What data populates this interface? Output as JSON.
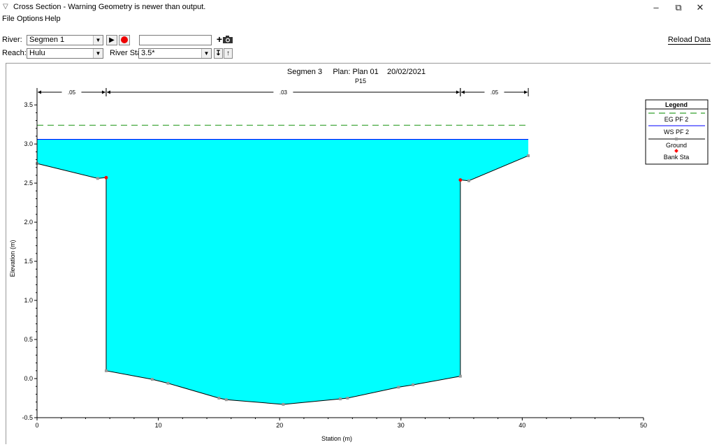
{
  "window": {
    "title": "Cross Section - Warning Geometry is newer than output.",
    "minimize": "–",
    "maximize": "⧉",
    "close": "✕"
  },
  "menu": [
    "File",
    "Options",
    "Help"
  ],
  "toolbar": {
    "river_label": "River:",
    "river_value": "Segmen 1",
    "reach_label": "Reach:",
    "reach_value": "Hulu",
    "river_sta_label": "River Sta.:",
    "river_sta_value": "3.5*",
    "profile_value": "",
    "reload_label": "Reload Data"
  },
  "icons": {
    "play": "play-icon",
    "record": "record-icon",
    "plus": "plus-icon",
    "camera": "camera-icon",
    "down": "down-arrow-icon",
    "up": "up-arrow-icon"
  },
  "colors": {
    "water": "#00FFFF",
    "eg_line": "#33a02c",
    "ws_line": "#0000ff",
    "bank_sta": "#ff0000",
    "ground_point": "#999999"
  },
  "chart_data": {
    "type": "area",
    "title": "Segmen 3     Plan: Plan 01    20/02/2021",
    "subtitle": "P15",
    "xlabel": "Station (m)",
    "ylabel": "Elevation (m)",
    "xlim": [
      0,
      50
    ],
    "ylim": [
      -0.5,
      3.6
    ],
    "x_ticks": [
      0,
      10,
      20,
      30,
      40,
      50
    ],
    "y_ticks": [
      -0.5,
      0.0,
      0.5,
      1.0,
      1.5,
      2.0,
      2.5,
      3.0,
      3.5
    ],
    "x_tick_labels": [
      "0",
      "10",
      "20",
      "30",
      "40",
      "50"
    ],
    "y_tick_labels": [
      "-0.5",
      "0.0",
      "0.5",
      "1.0",
      "1.5",
      "2.0",
      "2.5",
      "3.0",
      "3.5"
    ],
    "ground": {
      "x": [
        0,
        5,
        5.7,
        5.7,
        9.5,
        10.8,
        15,
        15.6,
        20.3,
        25,
        25.6,
        29.8,
        31,
        34.9,
        34.9,
        35.6,
        40.5
      ],
      "y": [
        2.75,
        2.56,
        2.57,
        0.1,
        -0.01,
        -0.06,
        -0.25,
        -0.27,
        -0.33,
        -0.26,
        -0.25,
        -0.11,
        -0.08,
        0.03,
        2.54,
        2.53,
        2.85
      ]
    },
    "bank_stations": [
      {
        "x": 5.7,
        "y": 2.57
      },
      {
        "x": 34.9,
        "y": 2.54
      }
    ],
    "ws_pf2": 3.06,
    "eg_pf2": 3.24,
    "mannings_n": [
      {
        "label": ".05",
        "from": 0,
        "to": 5.7
      },
      {
        "label": ".03",
        "from": 5.7,
        "to": 34.9
      },
      {
        "label": ".05",
        "from": 34.9,
        "to": 40.5
      }
    ],
    "legend": {
      "title": "Legend",
      "position": "right",
      "entries": [
        "EG PF 2",
        "WS PF 2",
        "Ground",
        "Bank Sta"
      ]
    }
  }
}
